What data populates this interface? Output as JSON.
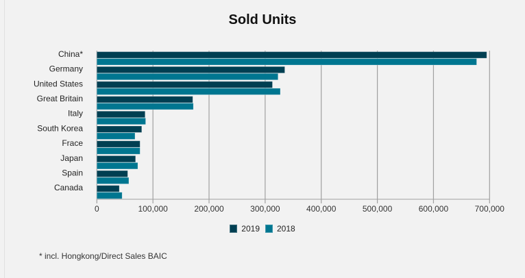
{
  "chart_data": {
    "type": "bar",
    "orientation": "horizontal",
    "title": "Sold Units",
    "xlabel": "",
    "ylabel": "",
    "categories": [
      "China*",
      "Germany",
      "United States",
      "Great Britain",
      "Italy",
      "South Korea",
      "Frace",
      "Japan",
      "Spain",
      "Canada"
    ],
    "series": [
      {
        "name": "2019",
        "color": "#003f52",
        "values": [
          695000,
          335000,
          313000,
          171000,
          86000,
          80000,
          77000,
          69000,
          55000,
          40000
        ]
      },
      {
        "name": "2018",
        "color": "#007690",
        "values": [
          677000,
          323000,
          327000,
          172000,
          87000,
          68000,
          77000,
          73000,
          57000,
          45000
        ]
      }
    ],
    "xlim": [
      0,
      700000
    ],
    "xticks": [
      0,
      100000,
      200000,
      300000,
      400000,
      500000,
      600000,
      700000
    ],
    "xtick_labels": [
      "0",
      "100,000",
      "200,000",
      "300,000",
      "400,000",
      "500,000",
      "600,000",
      "700,000"
    ],
    "grid": true,
    "legend_position": "bottom-center"
  },
  "legend": [
    {
      "label": "2019",
      "color": "#003f52"
    },
    {
      "label": "2018",
      "color": "#007690"
    }
  ],
  "footnote": "* incl. Hongkong/Direct Sales BAIC",
  "colors": {
    "background": "#f2f2f2",
    "gridline": "#a0a0a0"
  }
}
